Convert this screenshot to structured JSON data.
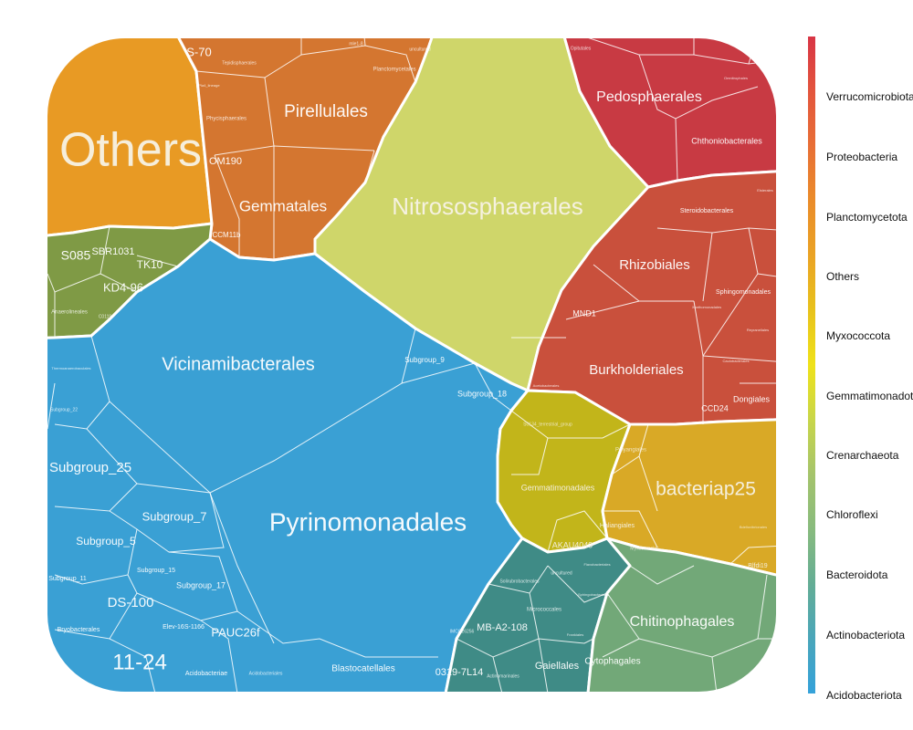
{
  "chart_data": {
    "type": "voronoi-treemap",
    "title": "",
    "legend": {
      "placement": "right",
      "entries": [
        {
          "name": "Verrucomicrobiota",
          "color": "#c83a43"
        },
        {
          "name": "Proteobacteria",
          "color": "#d45a3a"
        },
        {
          "name": "Planctomycetota",
          "color": "#db7a2e"
        },
        {
          "name": "Others",
          "color": "#e89a24"
        },
        {
          "name": "Myxococcota",
          "color": "#e8c21c"
        },
        {
          "name": "Gemmatimonadota",
          "color": "#d8d62a"
        },
        {
          "name": "Crenarchaeota",
          "color": "#c9d36a"
        },
        {
          "name": "Chloroflexi",
          "color": "#98b464"
        },
        {
          "name": "Bacteroidota",
          "color": "#74ab7c"
        },
        {
          "name": "Actinobacteriota",
          "color": "#5aa4a8"
        },
        {
          "name": "Acidobacteriota",
          "color": "#3aa0d4"
        }
      ],
      "gradient_colors": [
        "#d83545",
        "#e3553d",
        "#e86f36",
        "#ea8c2a",
        "#eaa325",
        "#e8c21c",
        "#efe21a",
        "#c8d64a",
        "#a5c46c",
        "#88bb7e",
        "#64ad95",
        "#4aa6ba",
        "#35a2da"
      ]
    },
    "groups": [
      {
        "phylum": "Others",
        "color": "#e89a24",
        "labels": [
          "Others"
        ]
      },
      {
        "phylum": "Planctomycetota",
        "color": "#d47630",
        "labels": [
          "S-70",
          "Pirellulales",
          "Gemmatales",
          "OM190",
          "CCM11b",
          "Tepidisphaerales",
          "Phycisphaerales",
          "Planctomycetales",
          "mle1-8",
          "uncultured",
          "Pla4_lineage"
        ]
      },
      {
        "phylum": "Crenarchaeota",
        "color": "#cfd66a",
        "labels": [
          "Nitrososphaerales"
        ]
      },
      {
        "phylum": "Verrucomicrobiota",
        "color": "#c83a43",
        "labels": [
          "Pedosphaerales",
          "Chthoniobacterales",
          "Opitutales",
          "Omnitrophales"
        ]
      },
      {
        "phylum": "Proteobacteria",
        "color": "#c9503c",
        "labels": [
          "Rhizobiales",
          "Burkholderiales",
          "Steroidobacterales",
          "Sphingomonadales",
          "Dongiales",
          "CCD24",
          "MND1",
          "Elsterales",
          "Reyranellales",
          "Caulobacterales",
          "Xanthomonadales",
          "Acetobacterales"
        ]
      },
      {
        "phylum": "Chloroflexi",
        "color": "#7f9a45",
        "labels": [
          "S085",
          "SBR1031",
          "TK10",
          "KD4-96",
          "Anaerolineales",
          "C0119"
        ]
      },
      {
        "phylum": "Acidobacteriota",
        "color": "#3aa0d4",
        "labels": [
          "Vicinamibacterales",
          "Pyrinomonadales",
          "Subgroup_9",
          "Subgroup_18",
          "Blastocatellales",
          "Thermoanaerobaculales",
          "Subgroup_22",
          "Subgroup_25",
          "Subgroup_7",
          "Subgroup_5",
          "Subgroup_15",
          "Subgroup_17",
          "Subgroup_11",
          "DS-100",
          "Elev-16S-1166",
          "PAUC26f",
          "Bryobacterales",
          "11-24",
          "Acidobacteriae",
          "Acidobacteriales"
        ]
      },
      {
        "phylum": "Gemmatimonadota",
        "color": "#c2b51a",
        "labels": [
          "Gemmatimonadales",
          "AKAU4049",
          "S0134_terrestrial_group"
        ]
      },
      {
        "phylum": "Myxococcota",
        "color": "#d9a926",
        "labels": [
          "bacteriap25",
          "Polyangiales",
          "Myxococcales",
          "Haliangiales",
          "Bdellovibrionales",
          "Blfdi19"
        ]
      },
      {
        "phylum": "Actinobacteriota",
        "color": "#3f8b86",
        "labels": [
          "MB-A2-108",
          "Gaiellales",
          "0319-7L14",
          "Micrococcales",
          "Solirubrobacterales",
          "Actinomarinales",
          "IMCC26256",
          "uncultured",
          "Frankiales"
        ]
      },
      {
        "phylum": "Bacteroidota",
        "color": "#72a878",
        "labels": [
          "Chitinophagales",
          "Cytophagales",
          "Flavobacteriales",
          "Sphingobacteriales"
        ]
      }
    ]
  }
}
